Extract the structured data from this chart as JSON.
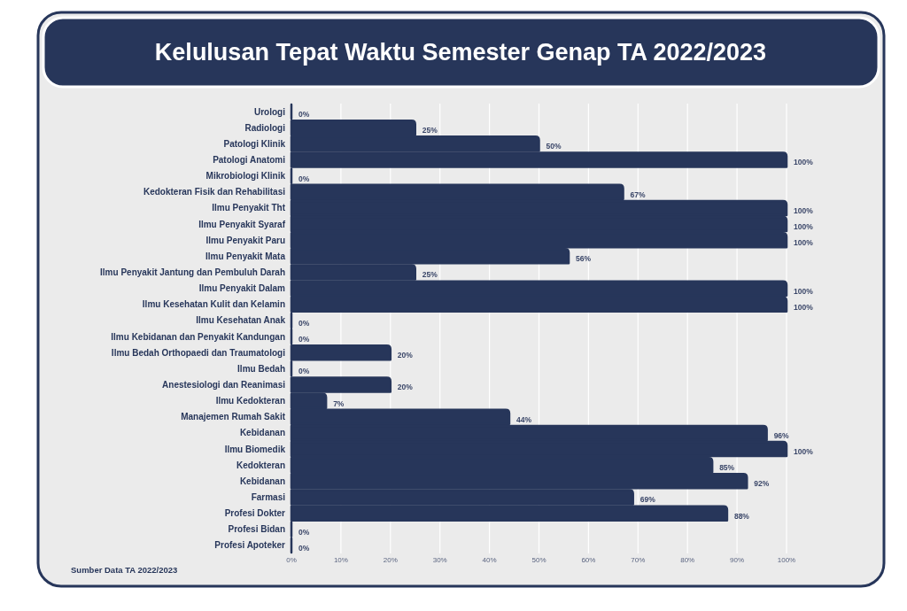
{
  "chart_data": {
    "type": "bar",
    "orientation": "horizontal",
    "title": "Kelulusan Tepat Waktu Semester Genap TA 2022/2023",
    "categories": [
      "Urologi",
      "Radiologi",
      "Patologi Klinik",
      "Patologi Anatomi",
      "Mikrobiologi Klinik",
      "Kedokteran Fisik dan Rehabilitasi",
      "Ilmu Penyakit Tht",
      "Ilmu Penyakit Syaraf",
      "Ilmu Penyakit Paru",
      "Ilmu Penyakit Mata",
      "Ilmu Penyakit Jantung dan Pembuluh Darah",
      "Ilmu Penyakit Dalam",
      "Ilmu Kesehatan Kulit dan Kelamin",
      "Ilmu Kesehatan Anak",
      "Ilmu Kebidanan dan Penyakit Kandungan",
      "Ilmu Bedah Orthopaedi dan Traumatologi",
      "Ilmu Bedah",
      "Anestesiologi dan Reanimasi",
      "Ilmu Kedokteran",
      "Manajemen Rumah Sakit",
      "Kebidanan",
      "Ilmu Biomedik",
      "Kedokteran",
      "Kebidanan",
      "Farmasi",
      "Profesi Dokter",
      "Profesi Bidan",
      "Profesi Apoteker"
    ],
    "values": [
      0,
      25,
      50,
      100,
      0,
      67,
      100,
      100,
      100,
      56,
      25,
      100,
      100,
      0,
      0,
      20,
      0,
      20,
      7,
      44,
      96,
      100,
      85,
      92,
      69,
      88,
      0,
      0
    ],
    "value_labels": [
      "0%",
      "25%",
      "50%",
      "100%",
      "0%",
      "67%",
      "100%",
      "100%",
      "100%",
      "56%",
      "25%",
      "100%",
      "100%",
      "0%",
      "0%",
      "20%",
      "0%",
      "20%",
      "7%",
      "44%",
      "96%",
      "100%",
      "85%",
      "92%",
      "69%",
      "88%",
      "0%",
      "0%"
    ],
    "color": "#27365a",
    "xlim": [
      0,
      100
    ],
    "xticks": [
      {
        "value": 0,
        "label": "0%"
      },
      {
        "value": 10,
        "label": "10%"
      },
      {
        "value": 20,
        "label": "20%"
      },
      {
        "value": 30,
        "label": "30%"
      },
      {
        "value": 40,
        "label": "40%"
      },
      {
        "value": 50,
        "label": "50%"
      },
      {
        "value": 60,
        "label": "60%"
      },
      {
        "value": 70,
        "label": "70%"
      },
      {
        "value": 80,
        "label": "80%"
      },
      {
        "value": 90,
        "label": "90%"
      },
      {
        "value": 100,
        "label": "100%"
      }
    ],
    "grid": "x",
    "annotations": [
      "Sumber Data TA 2022/2023"
    ]
  }
}
